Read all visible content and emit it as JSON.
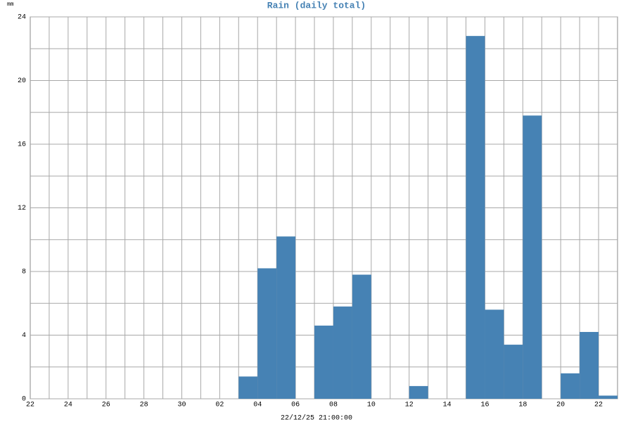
{
  "chart_data": {
    "type": "bar",
    "title": "Rain (daily total)",
    "y_label": "mm",
    "x_label": "22/12/25 21:00:00",
    "categories": [
      "22",
      null,
      "24",
      null,
      "26",
      null,
      "28",
      null,
      "30",
      null,
      "02",
      null,
      "04",
      null,
      "06",
      null,
      "08",
      null,
      "10",
      null,
      "12",
      null,
      "14",
      null,
      "16",
      null,
      "18",
      null,
      "20",
      null,
      "22"
    ],
    "values": [
      0,
      0,
      0,
      0,
      0,
      0,
      0,
      0,
      0,
      0,
      0,
      1.4,
      8.2,
      10.2,
      0,
      4.6,
      5.8,
      7.8,
      0,
      0,
      0.8,
      0,
      0,
      22.8,
      5.6,
      3.4,
      17.8,
      0,
      1.6,
      4.2,
      0.2
    ],
    "color": "#4682b4",
    "ylim": [
      0,
      24
    ],
    "yticks": [
      0,
      4,
      8,
      12,
      16,
      20,
      24
    ],
    "grid": true
  }
}
